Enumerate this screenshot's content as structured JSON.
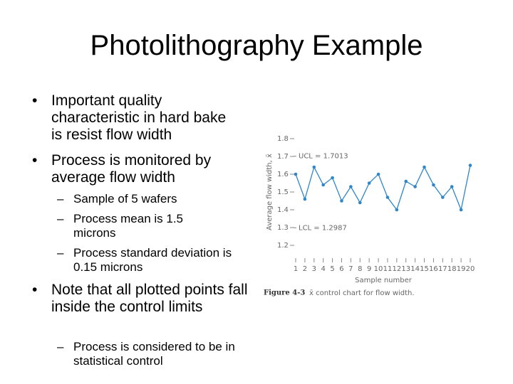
{
  "title": "Photolithography Example",
  "bullets": [
    {
      "text": "Important quality characteristic in hard bake is resist flow width"
    },
    {
      "text": "Process is monitored by average flow width",
      "sub": [
        "Sample of 5 wafers",
        "Process mean is 1.5 microns",
        "Process standard deviation is 0.15 microns"
      ]
    },
    {
      "text": "Note that all plotted points fall inside the control limits",
      "sub": [
        "Process is considered to be in statistical control"
      ]
    }
  ],
  "chart_data": {
    "type": "line",
    "figure_label": "Figure 4-3",
    "caption": "x̄ control chart for flow width.",
    "xlabel": "Sample number",
    "ylabel": "Average flow width, x̄",
    "categories": [
      "1",
      "2",
      "3",
      "4",
      "5",
      "6",
      "7",
      "8",
      "9",
      "10",
      "11",
      "12",
      "13",
      "14",
      "15",
      "16",
      "17",
      "18",
      "19",
      "20"
    ],
    "series": [
      {
        "name": "x̄",
        "color": "#2f86c8",
        "values": [
          1.6,
          1.46,
          1.64,
          1.54,
          1.58,
          1.45,
          1.53,
          1.44,
          1.55,
          1.6,
          1.47,
          1.4,
          1.56,
          1.53,
          1.64,
          1.54,
          1.47,
          1.53,
          1.4,
          1.65
        ]
      }
    ],
    "ylim": [
      1.15,
      1.85
    ],
    "yticks": [
      1.2,
      1.3,
      1.4,
      1.5,
      1.6,
      1.7,
      1.8
    ],
    "limits": [
      {
        "value": 1.7013,
        "label": "UCL = 1.7013"
      },
      {
        "value": 1.2987,
        "label": "LCL = 1.2987"
      }
    ]
  }
}
